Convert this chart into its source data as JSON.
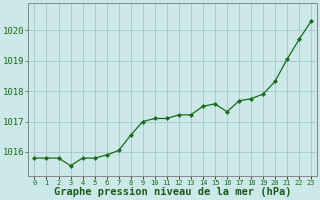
{
  "x": [
    0,
    1,
    2,
    3,
    4,
    5,
    6,
    7,
    8,
    9,
    10,
    11,
    12,
    13,
    14,
    15,
    16,
    17,
    18,
    19,
    20,
    21,
    22,
    23
  ],
  "y": [
    1015.8,
    1015.8,
    1015.8,
    1015.55,
    1015.8,
    1015.8,
    1015.9,
    1016.05,
    1016.55,
    1017.0,
    1017.1,
    1017.1,
    1017.22,
    1017.22,
    1017.5,
    1017.58,
    1017.32,
    1017.68,
    1017.75,
    1017.9,
    1018.32,
    1019.05,
    1019.7,
    1020.3
  ],
  "line_color": "#1a6b1a",
  "marker_color": "#1a6b1a",
  "bg_color": "#cce8e8",
  "grid_color": "#aacccc",
  "xlabel": "Graphe pression niveau de la mer (hPa)",
  "xlabel_color": "#1a5c1a",
  "ylabel_ticks": [
    1016,
    1017,
    1018,
    1019,
    1020
  ],
  "ylim": [
    1015.2,
    1020.9
  ],
  "xlim": [
    -0.5,
    23.5
  ],
  "tick_color": "#1a6b1a",
  "axis_color": "#888888",
  "ytick_fontsize": 6.5,
  "xtick_fontsize": 5.0,
  "xlabel_fontsize": 7.5
}
